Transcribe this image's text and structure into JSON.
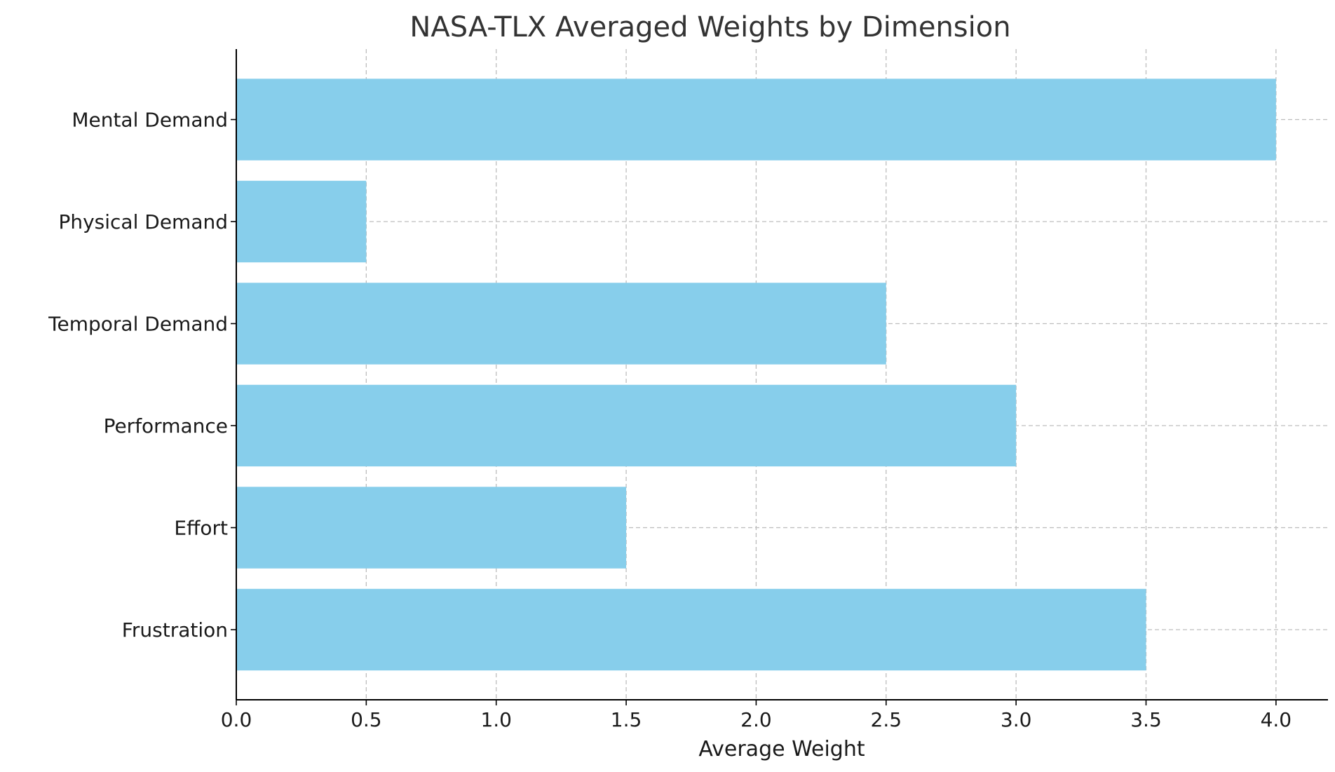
{
  "chart_data": {
    "type": "bar",
    "orientation": "horizontal",
    "title": "NASA-TLX Averaged Weights by Dimension",
    "xlabel": "Average Weight",
    "ylabel": "",
    "categories": [
      "Mental Demand",
      "Physical Demand",
      "Temporal Demand",
      "Performance",
      "Effort",
      "Frustration"
    ],
    "values": [
      4.0,
      0.5,
      2.5,
      3.0,
      1.5,
      3.5
    ],
    "xlim": [
      0,
      4.2
    ],
    "xticks": [
      "0.0",
      "0.5",
      "1.0",
      "1.5",
      "2.0",
      "2.5",
      "3.0",
      "3.5",
      "4.0"
    ],
    "grid": true,
    "bar_color": "#87CEEB"
  }
}
